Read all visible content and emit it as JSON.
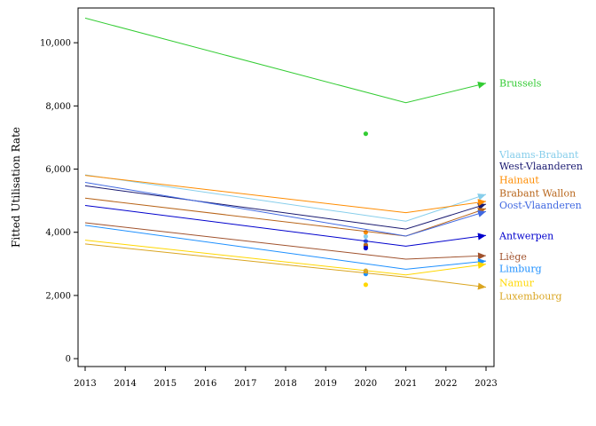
{
  "chart_data": {
    "type": "line",
    "title": "",
    "xlabel": "",
    "ylabel": "Fitted Utilisation Rate",
    "x_ticks": [
      2013,
      2014,
      2015,
      2016,
      2017,
      2018,
      2019,
      2020,
      2021,
      2022,
      2023
    ],
    "y_ticks": [
      0,
      2000,
      4000,
      6000,
      8000,
      10000
    ],
    "y_tick_labels": [
      "0",
      "2,000",
      "4,000",
      "6,000",
      "8,000",
      "10,000"
    ],
    "xlim": [
      2013,
      2023
    ],
    "ylim": [
      -250,
      11100
    ],
    "grid": false,
    "legend": "direct labels at right",
    "x": [
      2013,
      2021,
      2023
    ],
    "series": [
      {
        "name": "Brussels",
        "color": "#33cc33",
        "values": [
          10780,
          8100,
          8720
        ],
        "point_2020": 7120
      },
      {
        "name": "Vlaams-Brabant",
        "color": "#87ceeb",
        "values": [
          5820,
          4350,
          5200
        ],
        "point_2020": 3870
      },
      {
        "name": "West-Vlaanderen",
        "color": "#191970",
        "values": [
          5470,
          4100,
          4890
        ],
        "point_2020": 3560
      },
      {
        "name": "Hainaut",
        "color": "#ff8c00",
        "values": [
          5800,
          4620,
          4980
        ],
        "point_2020": 4000
      },
      {
        "name": "Brabant Wallon",
        "color": "#b8651a",
        "values": [
          5080,
          3880,
          4750
        ],
        "point_2020": 3600
      },
      {
        "name": "Oost-Vlaanderen",
        "color": "#4169e1",
        "values": [
          5580,
          3880,
          4660
        ],
        "point_2020": 3720
      },
      {
        "name": "Antwerpen",
        "color": "#0000cd",
        "values": [
          4850,
          3560,
          3900
        ],
        "point_2020": 3500
      },
      {
        "name": "Liège",
        "color": "#a0522d",
        "values": [
          4300,
          3150,
          3260
        ],
        "point_2020": 2740
      },
      {
        "name": "Limburg",
        "color": "#1e90ff",
        "values": [
          4220,
          2830,
          3090
        ],
        "point_2020": 2680
      },
      {
        "name": "Namur",
        "color": "#ffd700",
        "values": [
          3750,
          2650,
          2990
        ],
        "point_2020": 2340
      },
      {
        "name": "Luxembourg",
        "color": "#daa520",
        "values": [
          3630,
          2580,
          2260
        ],
        "point_2020": 2780
      }
    ],
    "label_values": [
      8720,
      6460,
      6100,
      5660,
      5240,
      4860,
      3900,
      3240,
      2850,
      2410,
      1980
    ]
  }
}
